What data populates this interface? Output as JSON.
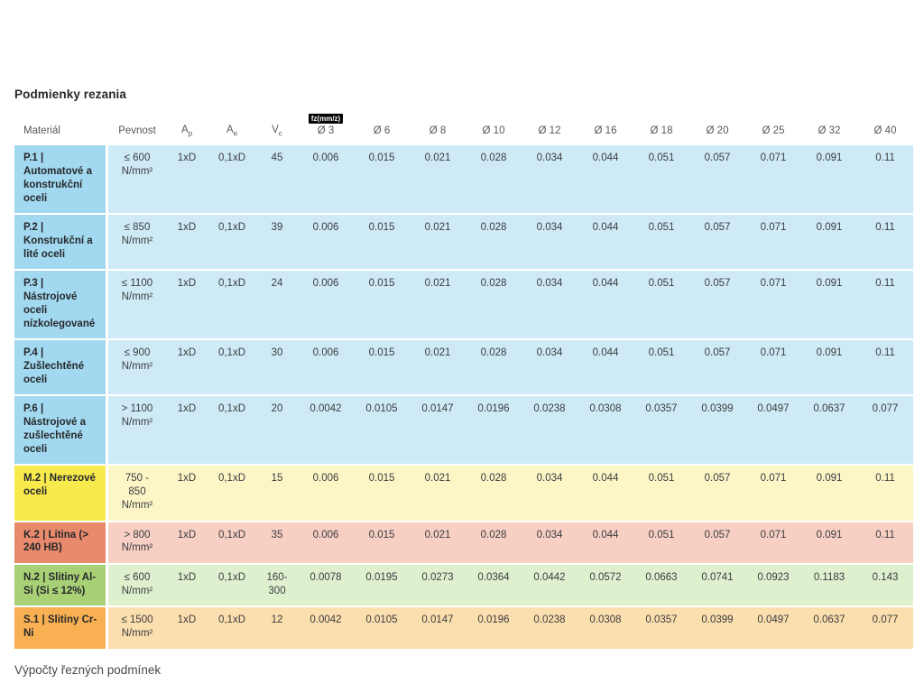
{
  "page": {
    "title": "Podmienky rezania",
    "footer_text": "Výpočty řezných podmínek"
  },
  "table": {
    "columns": [
      {
        "label": "Materiál",
        "key": "material"
      },
      {
        "label": "Pevnost",
        "key": "pevnost"
      },
      {
        "label": "A",
        "sub": "p",
        "key": "ap"
      },
      {
        "label": "A",
        "sub": "e",
        "key": "ae"
      },
      {
        "label": "V",
        "sub": "c",
        "key": "vc"
      },
      {
        "label": "Ø 3",
        "badge": "fz(mm/z)"
      },
      {
        "label": "Ø 6"
      },
      {
        "label": "Ø 8"
      },
      {
        "label": "Ø 10"
      },
      {
        "label": "Ø 12"
      },
      {
        "label": "Ø 16"
      },
      {
        "label": "Ø 18"
      },
      {
        "label": "Ø 20"
      },
      {
        "label": "Ø 25"
      },
      {
        "label": "Ø 32"
      },
      {
        "label": "Ø 40"
      }
    ],
    "rows": [
      {
        "material": "P.1 | Automatové a konstrukční oceli",
        "pevnost": "≤ 600 N/mm²",
        "ap": "1xD",
        "ae": "0,1xD",
        "vc": "45",
        "feeds": [
          "0.006",
          "0.015",
          "0.021",
          "0.028",
          "0.034",
          "0.044",
          "0.051",
          "0.057",
          "0.071",
          "0.091",
          "0.11"
        ],
        "label_bg": "#a2d9f0",
        "data_bg": "#cfeaf7"
      },
      {
        "material": "P.2 | Konstrukční a lité oceli",
        "pevnost": "≤ 850 N/mm²",
        "ap": "1xD",
        "ae": "0,1xD",
        "vc": "39",
        "feeds": [
          "0.006",
          "0.015",
          "0.021",
          "0.028",
          "0.034",
          "0.044",
          "0.051",
          "0.057",
          "0.071",
          "0.091",
          "0.11"
        ],
        "label_bg": "#a2d9f0",
        "data_bg": "#cfeaf7"
      },
      {
        "material": "P.3 | Nástrojové oceli nízkolegované",
        "pevnost": "≤ 1100 N/mm²",
        "ap": "1xD",
        "ae": "0,1xD",
        "vc": "24",
        "feeds": [
          "0.006",
          "0.015",
          "0.021",
          "0.028",
          "0.034",
          "0.044",
          "0.051",
          "0.057",
          "0.071",
          "0.091",
          "0.11"
        ],
        "label_bg": "#a2d9f0",
        "data_bg": "#cfeaf7"
      },
      {
        "material": "P.4 | Zušlechtěné oceli",
        "pevnost": "≤ 900 N/mm²",
        "ap": "1xD",
        "ae": "0,1xD",
        "vc": "30",
        "feeds": [
          "0.006",
          "0.015",
          "0.021",
          "0.028",
          "0.034",
          "0.044",
          "0.051",
          "0.057",
          "0.071",
          "0.091",
          "0.11"
        ],
        "label_bg": "#a2d9f0",
        "data_bg": "#cfeaf7"
      },
      {
        "material": "P.6 | Nástrojové a zušlechtěné oceli",
        "pevnost": "> 1100 N/mm²",
        "ap": "1xD",
        "ae": "0,1xD",
        "vc": "20",
        "feeds": [
          "0.0042",
          "0.0105",
          "0.0147",
          "0.0196",
          "0.0238",
          "0.0308",
          "0.0357",
          "0.0399",
          "0.0497",
          "0.0637",
          "0.077"
        ],
        "label_bg": "#a2d9f0",
        "data_bg": "#cfeaf7"
      },
      {
        "material": "M.2 | Nerezové oceli",
        "pevnost": "750 - 850 N/mm²",
        "ap": "1xD",
        "ae": "0,1xD",
        "vc": "15",
        "feeds": [
          "0.006",
          "0.015",
          "0.021",
          "0.028",
          "0.034",
          "0.044",
          "0.051",
          "0.057",
          "0.071",
          "0.091",
          "0.11"
        ],
        "label_bg": "#f8ea4d",
        "data_bg": "#fcf6c7"
      },
      {
        "material": "K.2 | Litina (> 240 HB)",
        "pevnost": "> 800 N/mm²",
        "ap": "1xD",
        "ae": "0,1xD",
        "vc": "35",
        "feeds": [
          "0.006",
          "0.015",
          "0.021",
          "0.028",
          "0.034",
          "0.044",
          "0.051",
          "0.057",
          "0.071",
          "0.091",
          "0.11"
        ],
        "label_bg": "#e98a6d",
        "data_bg": "#f7cfc3"
      },
      {
        "material": "N.2 | Slitiny Al-Si (Si ≤ 12%)",
        "pevnost": "≤ 600 N/mm²",
        "ap": "1xD",
        "ae": "0,1xD",
        "vc": "160-300",
        "feeds": [
          "0.0078",
          "0.0195",
          "0.0273",
          "0.0364",
          "0.0442",
          "0.0572",
          "0.0663",
          "0.0741",
          "0.0923",
          "0.1183",
          "0.143"
        ],
        "label_bg": "#a8d075",
        "data_bg": "#dff0cf"
      },
      {
        "material": "S.1 | Slitiny Cr-Ni",
        "pevnost": "≤ 1500 N/mm²",
        "ap": "1xD",
        "ae": "0,1xD",
        "vc": "12",
        "feeds": [
          "0.0042",
          "0.0105",
          "0.0147",
          "0.0196",
          "0.0238",
          "0.0308",
          "0.0357",
          "0.0399",
          "0.0497",
          "0.0637",
          "0.077"
        ],
        "label_bg": "#f8b052",
        "data_bg": "#fbdfae"
      }
    ]
  }
}
